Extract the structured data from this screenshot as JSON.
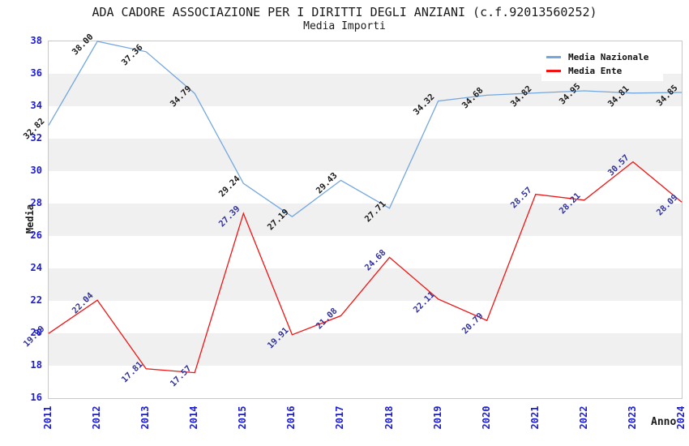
{
  "title": "ADA CADORE ASSOCIAZIONE PER I DIRITTI DEGLI ANZIANI (c.f.92013560252)",
  "subtitle": "Media Importi",
  "chart_data": {
    "type": "line",
    "x": [
      "2011",
      "2012",
      "2013",
      "2014",
      "2015",
      "2016",
      "2017",
      "2018",
      "2019",
      "2020",
      "2021",
      "2022",
      "2023",
      "2024"
    ],
    "series": [
      {
        "name": "Media Nazionale",
        "color": "#74a7df",
        "label_color": "#1a1a1a",
        "values": [
          32.82,
          38.0,
          37.36,
          34.79,
          29.24,
          27.19,
          29.43,
          27.71,
          34.32,
          34.68,
          34.82,
          34.95,
          34.81,
          34.85
        ]
      },
      {
        "name": "Media Ente",
        "color": "#f01414",
        "label_color": "#32329b",
        "values": [
          19.99,
          22.04,
          17.81,
          17.57,
          27.39,
          19.91,
          21.08,
          24.68,
          22.11,
          20.79,
          28.57,
          28.21,
          30.57,
          28.09
        ]
      }
    ],
    "xlabel": "Anno",
    "ylabel": "Media",
    "ylim": [
      16,
      38
    ],
    "ytick_step": 2,
    "grid": "horizontal-bands",
    "band_colors": [
      "#ffffff",
      "#f0f0f0"
    ],
    "legend_position": "top-right",
    "axis_tick_color": "#1c1cd0"
  }
}
